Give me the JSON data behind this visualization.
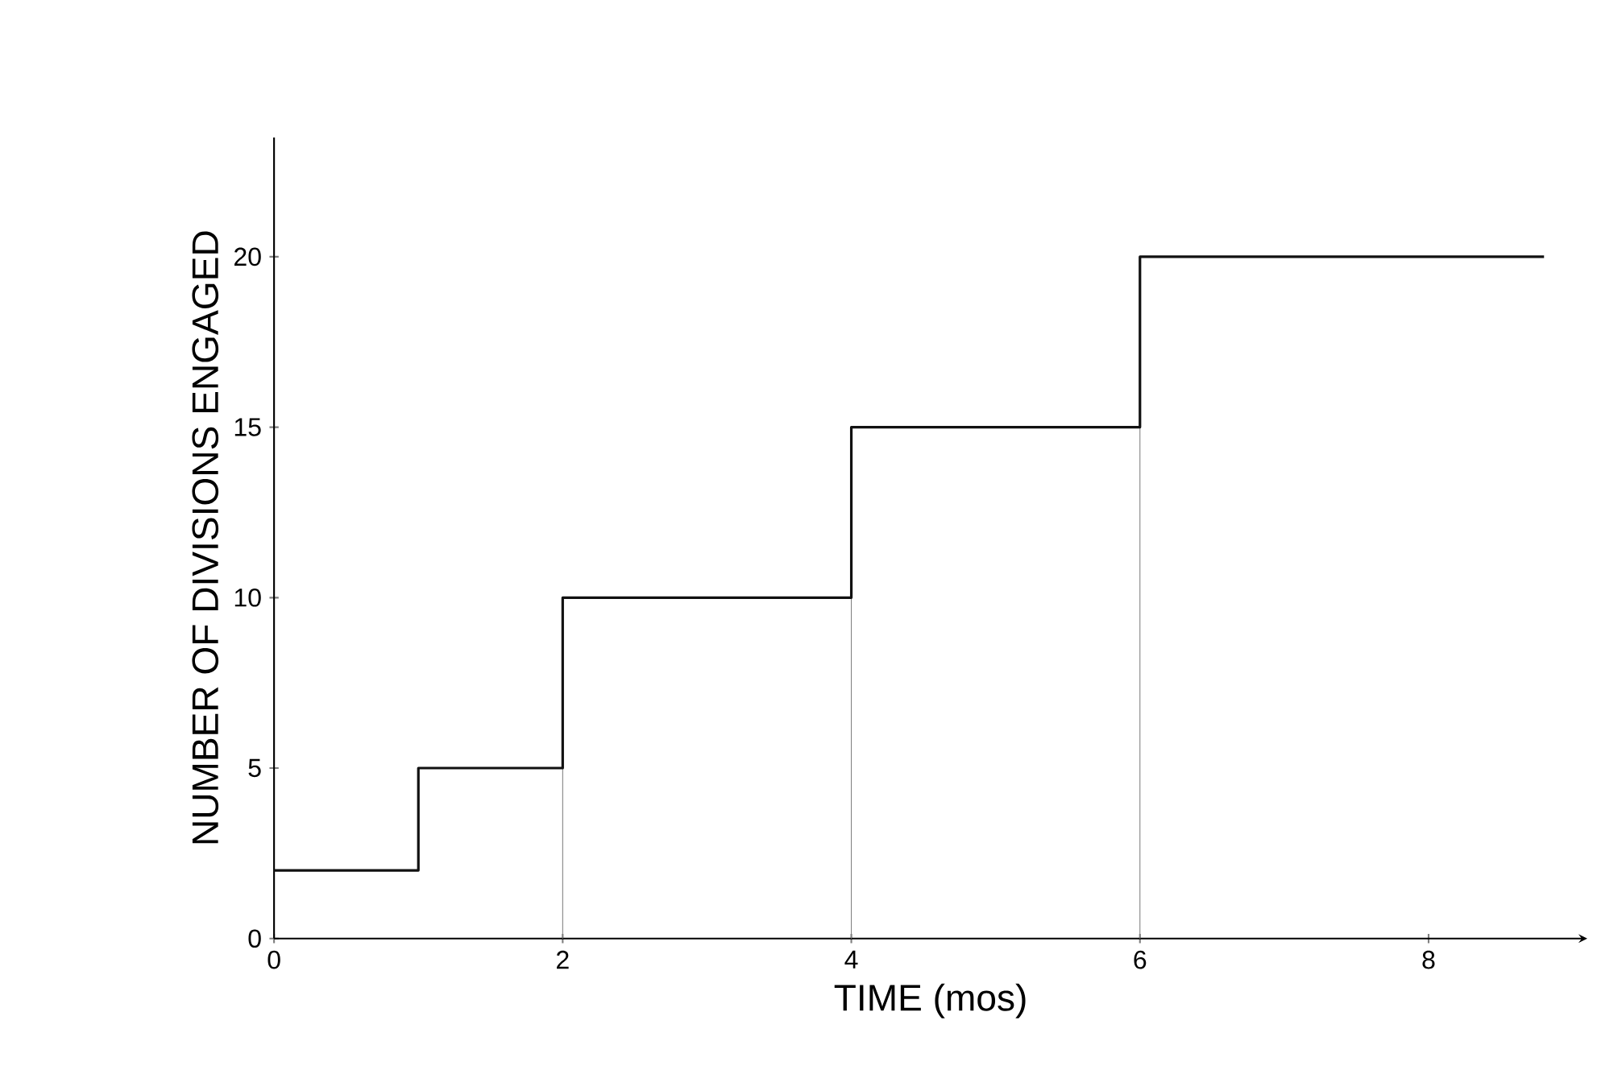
{
  "chart_data": {
    "type": "step",
    "xlabel": "TIME (mos)",
    "ylabel": "NUMBER OF DIVISIONS ENGAGED",
    "x": [
      0,
      1,
      2,
      4,
      6,
      8.8
    ],
    "values": [
      2,
      5,
      10,
      15,
      20,
      20
    ],
    "color": "#111111",
    "marker": "none",
    "line_style": "solid",
    "grid": false,
    "xlim": [
      0,
      9.1
    ],
    "ylim": [
      0,
      23.5
    ],
    "xticks": [
      0,
      2,
      4,
      6,
      8
    ],
    "yticks": [
      0,
      5,
      10,
      15,
      20
    ],
    "ref_lines": [
      {
        "axis": "x",
        "value": 2
      },
      {
        "axis": "x",
        "value": 4
      },
      {
        "axis": "x",
        "value": 6
      }
    ]
  }
}
